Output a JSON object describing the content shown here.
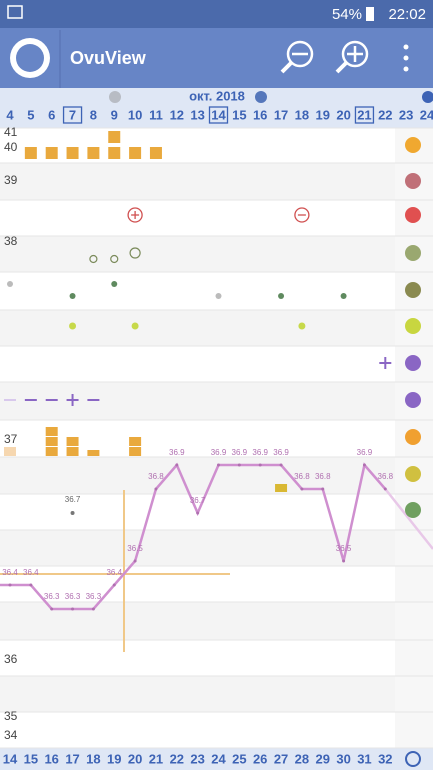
{
  "status_bar": {
    "battery": "54%",
    "time": "22:02"
  },
  "app_bar": {
    "title": "OvuView"
  },
  "calendar": {
    "month": "окт. 2018",
    "days": [
      4,
      5,
      6,
      7,
      8,
      9,
      10,
      11,
      12,
      13,
      14,
      15,
      16,
      17,
      18,
      19,
      20,
      21,
      22,
      23,
      24
    ],
    "highlighted_days": [
      7,
      14,
      21
    ],
    "cycle_days": [
      14,
      15,
      16,
      17,
      18,
      19,
      20,
      21,
      22,
      23,
      24,
      25,
      26,
      27,
      28,
      29,
      30,
      31,
      32
    ]
  },
  "temperature_axis": {
    "labels": [
      41,
      40,
      39,
      38,
      37,
      36,
      35,
      34
    ]
  },
  "temperature": {
    "days": [
      4,
      5,
      6,
      7,
      8,
      9,
      10,
      11,
      12,
      13,
      14,
      15,
      16,
      17,
      18,
      19,
      20,
      21,
      22
    ],
    "values": [
      36.4,
      36.4,
      36.3,
      36.3,
      36.3,
      36.4,
      36.5,
      36.8,
      36.9,
      36.7,
      36.9,
      36.9,
      36.9,
      36.9,
      36.8,
      36.8,
      36.5,
      36.9,
      36.8
    ]
  },
  "excluded_temperature": {
    "day": 7,
    "value": 36.7
  }
}
